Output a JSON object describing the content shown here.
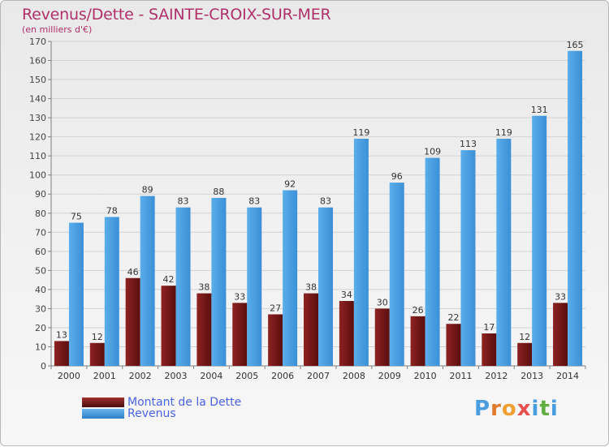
{
  "header": {
    "title": "Revenus/Dette - SAINTE-CROIX-SUR-MER",
    "subtitle": "(en milliers d'€)"
  },
  "legend": {
    "debt_label": "Montant de la Dette",
    "revenue_label": "Revenus"
  },
  "logo": {
    "letters": [
      "P",
      "r",
      "o",
      "x",
      "i",
      "t",
      "i"
    ],
    "colors": [
      "#4a9ee0",
      "#e07a2a",
      "#f0a030",
      "#e85050",
      "#4a9ee0",
      "#60b040",
      "#4a9ee0"
    ]
  },
  "colors": {
    "debt": "#7a1c1c",
    "revenue": "#4a9ee0",
    "title": "#b0306a"
  },
  "chart_data": {
    "type": "bar",
    "categories": [
      "2000",
      "2001",
      "2002",
      "2003",
      "2004",
      "2005",
      "2006",
      "2007",
      "2008",
      "2009",
      "2010",
      "2011",
      "2012",
      "2013",
      "2014"
    ],
    "series": [
      {
        "name": "Montant de la Dette",
        "values": [
          13,
          12,
          46,
          42,
          38,
          33,
          27,
          38,
          34,
          30,
          26,
          22,
          17,
          12,
          33
        ]
      },
      {
        "name": "Revenus",
        "values": [
          75,
          78,
          89,
          83,
          88,
          83,
          92,
          83,
          119,
          96,
          109,
          113,
          119,
          131,
          165
        ]
      }
    ],
    "ylim": [
      0,
      170
    ],
    "yticks": [
      0,
      10,
      20,
      30,
      40,
      50,
      60,
      70,
      80,
      90,
      100,
      110,
      120,
      130,
      140,
      150,
      160,
      170
    ],
    "grid": true
  }
}
